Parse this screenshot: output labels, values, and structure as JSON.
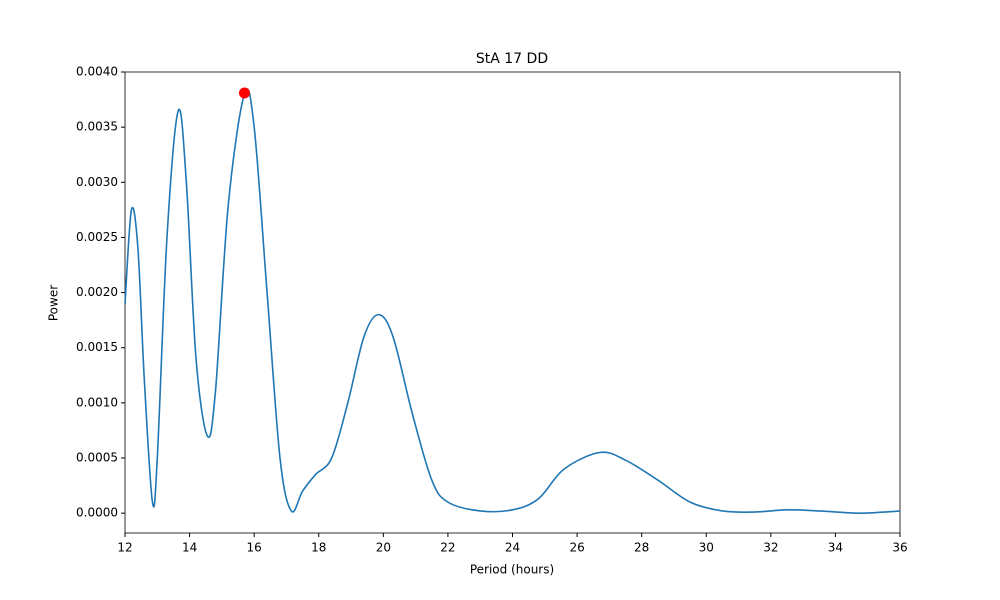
{
  "chart_data": {
    "type": "line",
    "title": "StA 17 DD",
    "xlabel": "Period (hours)",
    "ylabel": "Power",
    "x": [
      12.0,
      12.2,
      12.4,
      12.6,
      12.85,
      13.0,
      13.3,
      13.65,
      13.9,
      14.2,
      14.55,
      14.8,
      15.2,
      15.7,
      16.0,
      16.4,
      16.8,
      17.15,
      17.5,
      17.9,
      18.4,
      18.9,
      19.4,
      19.85,
      20.3,
      20.9,
      21.5,
      22.0,
      23.0,
      24.0,
      24.8,
      25.6,
      26.7,
      27.5,
      28.5,
      29.5,
      30.5,
      31.5,
      32.5,
      33.5,
      34.7,
      35.5,
      36.0
    ],
    "values": [
      0.0019,
      0.00275,
      0.0024,
      0.0012,
      0.0001,
      0.0005,
      0.0025,
      0.00365,
      0.003,
      0.0014,
      0.0007,
      0.0011,
      0.0028,
      0.0038,
      0.0035,
      0.002,
      0.0005,
      2e-05,
      0.0002,
      0.00035,
      0.0005,
      0.001,
      0.0016,
      0.0018,
      0.0016,
      0.0009,
      0.0003,
      0.0001,
      2e-05,
      3e-05,
      0.00013,
      0.0004,
      0.00055,
      0.00048,
      0.0003,
      0.0001,
      2e-05,
      1e-05,
      3e-05,
      2e-05,
      0.0,
      1e-05,
      2e-05
    ],
    "color": "#1f77b4",
    "peak": {
      "x": 15.7,
      "y": 0.00381,
      "color": "#ff0000"
    },
    "xlim": [
      12,
      36
    ],
    "xticks": [
      12,
      14,
      16,
      18,
      20,
      22,
      24,
      26,
      28,
      30,
      32,
      34,
      36
    ],
    "ylim": [
      -0.00018,
      0.004
    ],
    "yticks": [
      {
        "value": 0,
        "label": "0.0000"
      },
      {
        "value": 0.0005,
        "label": "0.0005"
      },
      {
        "value": 0.001,
        "label": "0.0010"
      },
      {
        "value": 0.0015,
        "label": "0.0015"
      },
      {
        "value": 0.002,
        "label": "0.0020"
      },
      {
        "value": 0.0025,
        "label": "0.0025"
      },
      {
        "value": 0.003,
        "label": "0.0030"
      },
      {
        "value": 0.0035,
        "label": "0.0035"
      },
      {
        "value": 0.004,
        "label": "0.0040"
      }
    ],
    "grid": false
  }
}
